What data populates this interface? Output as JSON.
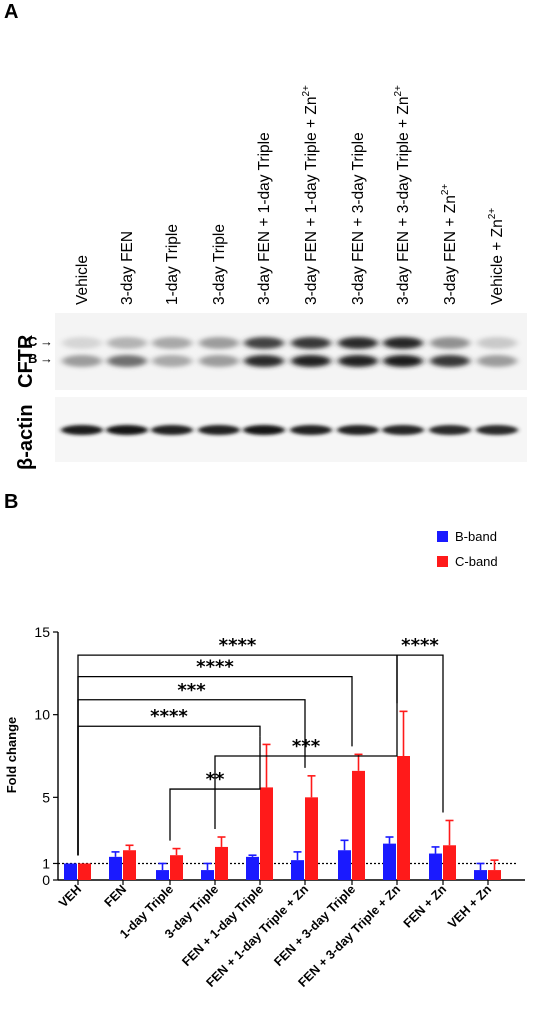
{
  "panel_a": {
    "letter": "A",
    "lanes": [
      {
        "text": "Vehicle",
        "sup": ""
      },
      {
        "text": "3-day FEN",
        "sup": ""
      },
      {
        "text": "1-day Triple",
        "sup": ""
      },
      {
        "text": "3-day Triple",
        "sup": ""
      },
      {
        "text": "3-day FEN + 1-day Triple",
        "sup": ""
      },
      {
        "text": "3-day FEN + 1-day Triple + Zn",
        "sup": "2+"
      },
      {
        "text": "3-day FEN + 3-day Triple",
        "sup": ""
      },
      {
        "text": "3-day FEN + 3-day Triple + Zn",
        "sup": "2+"
      },
      {
        "text": "3-day FEN +  Zn",
        "sup": "2+"
      },
      {
        "text": "Vehicle + Zn",
        "sup": "2+"
      }
    ],
    "blot_labels": {
      "cftr": "CFTR",
      "actin": "β-actin"
    },
    "band_letters": {
      "c": "C",
      "b": "B"
    },
    "band_arrow": "→",
    "cftr_band_b_intensity": [
      0.35,
      0.55,
      0.3,
      0.35,
      0.85,
      0.9,
      0.9,
      0.92,
      0.8,
      0.35
    ],
    "cftr_band_c_intensity": [
      0.1,
      0.25,
      0.3,
      0.35,
      0.75,
      0.8,
      0.85,
      0.88,
      0.4,
      0.15
    ],
    "actin_intensity": [
      0.92,
      0.95,
      0.9,
      0.9,
      0.95,
      0.9,
      0.9,
      0.88,
      0.85,
      0.85
    ]
  },
  "chart_data": {
    "type": "bar",
    "panel_letter": "B",
    "title": "",
    "xlabel": "",
    "ylabel": "Fold change",
    "ylim": [
      0,
      15
    ],
    "yticks": [
      0,
      1,
      5,
      10,
      15
    ],
    "reference_line": 1,
    "legend_position": "top-right",
    "categories": [
      "VEH",
      "FEN",
      "1-day Triple",
      "3-day Triple",
      "FEN + 1-day Triple",
      "FEN + 1-day Triple + Zn",
      "FEN + 3-day Triple",
      "FEN + 3-day Triple + Zn",
      "FEN + Zn",
      "VEH + Zn"
    ],
    "series": [
      {
        "name": "B-band",
        "color": "#1a1aff",
        "values": [
          1.0,
          1.4,
          0.6,
          0.6,
          1.4,
          1.2,
          1.8,
          2.2,
          1.6,
          0.6
        ],
        "errors": [
          0.0,
          0.3,
          0.4,
          0.4,
          0.1,
          0.5,
          0.6,
          0.4,
          0.4,
          0.4
        ]
      },
      {
        "name": "C-band",
        "color": "#ff1a1a",
        "values": [
          1.0,
          1.8,
          1.5,
          2.0,
          5.6,
          5.0,
          6.6,
          7.5,
          2.1,
          0.6
        ],
        "errors": [
          0.0,
          0.3,
          0.4,
          0.6,
          2.6,
          1.3,
          1.0,
          2.7,
          1.5,
          0.6
        ]
      }
    ],
    "significance": [
      {
        "label": "****",
        "from": 0,
        "to": 7,
        "y": 13.6
      },
      {
        "label": "****",
        "from": 7,
        "to": 8,
        "y": 13.6
      },
      {
        "label": "****",
        "from": 0,
        "to": 6,
        "y": 12.3
      },
      {
        "label": "***",
        "from": 0,
        "to": 5,
        "y": 10.9
      },
      {
        "label": "****",
        "from": 0,
        "to": 4,
        "y": 9.3
      },
      {
        "label": "***",
        "from": 3,
        "to": 7,
        "y": 7.5
      },
      {
        "label": "**",
        "from": 2,
        "to": 4,
        "y": 5.5
      }
    ]
  }
}
